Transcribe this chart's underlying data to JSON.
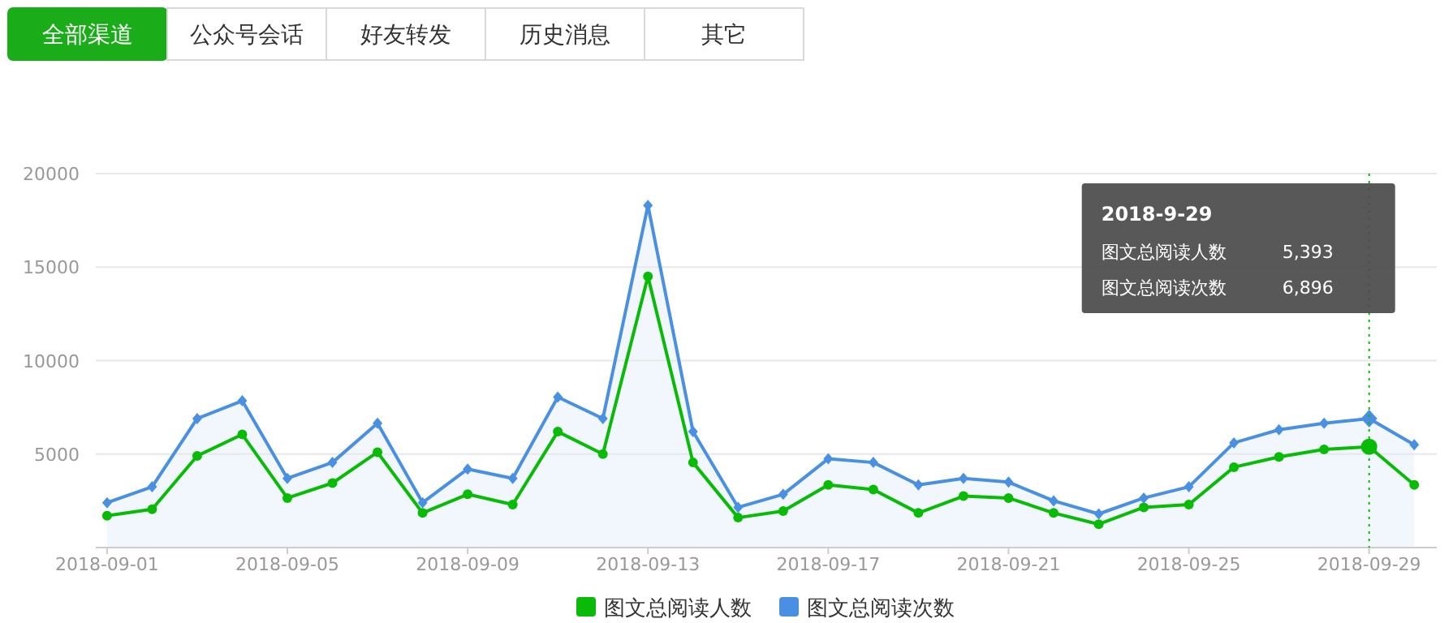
{
  "chart_data": [
    {
      "type": "other",
      "annotations": [
        "全部渠道",
        "公众号会话",
        "好友转发",
        "历史消息",
        "其它"
      ]
    },
    {
      "type": "line",
      "x": [
        "2018-09-01",
        "2018-09-02",
        "2018-09-03",
        "2018-09-04",
        "2018-09-05",
        "2018-09-06",
        "2018-09-07",
        "2018-09-08",
        "2018-09-09",
        "2018-09-10",
        "2018-09-11",
        "2018-09-12",
        "2018-09-13",
        "2018-09-14",
        "2018-09-15",
        "2018-09-16",
        "2018-09-17",
        "2018-09-18",
        "2018-09-19",
        "2018-09-20",
        "2018-09-21",
        "2018-09-22",
        "2018-09-23",
        "2018-09-24",
        "2018-09-25",
        "2018-09-26",
        "2018-09-27",
        "2018-09-28",
        "2018-09-29",
        "2018-09-30"
      ],
      "series": [
        {
          "name": "图文总阅读人数",
          "type": "line",
          "marker": "circle",
          "color": "#09bb07",
          "values": [
            1700,
            2050,
            4900,
            6050,
            2650,
            3450,
            5100,
            1850,
            2850,
            2300,
            6200,
            5000,
            14500,
            4550,
            1600,
            1950,
            3350,
            3100,
            1850,
            2750,
            2650,
            1850,
            1250,
            2150,
            2300,
            4300,
            4850,
            5250,
            5393,
            3350
          ]
        },
        {
          "name": "图文总阅读次数",
          "type": "area",
          "marker": "diamond",
          "color": "#4a90e2",
          "values": [
            2400,
            3250,
            6900,
            7850,
            3700,
            4550,
            6650,
            2400,
            4200,
            3700,
            8050,
            6900,
            18300,
            6200,
            2150,
            2850,
            4750,
            4550,
            3350,
            3700,
            3500,
            2500,
            1800,
            2650,
            3250,
            5600,
            6300,
            6650,
            6896,
            5500
          ]
        }
      ],
      "xlim": [
        "2018-08-31T18:00",
        "2018-09-30T12:00"
      ],
      "xticks": [
        "2018-09-01",
        "2018-09-05",
        "2018-09-09",
        "2018-09-13",
        "2018-09-17",
        "2018-09-21",
        "2018-09-25",
        "2018-09-29"
      ],
      "ylim": [
        0,
        20000
      ],
      "yticks": [
        5000,
        10000,
        15000,
        20000
      ],
      "grid": "y",
      "legend": "bottom",
      "ref_lines": [
        {
          "axis": "x",
          "value": "2018-09-29",
          "color": "#09bb07",
          "line_style": "dotted"
        }
      ],
      "annotations": [
        "2018-9-29",
        "5,393",
        "6,896"
      ]
    }
  ]
}
